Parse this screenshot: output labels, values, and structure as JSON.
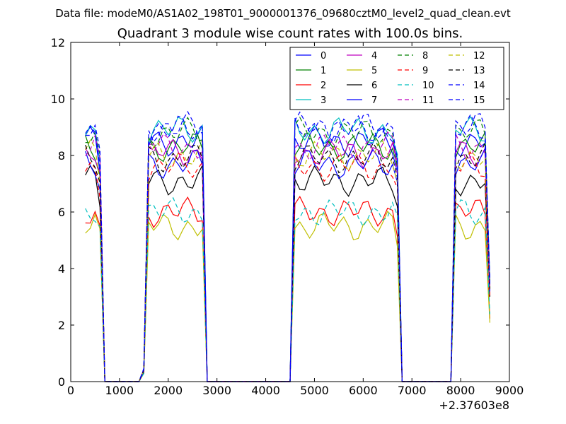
{
  "figure": {
    "suptitle": "Data file: modeM0/AS1A02_198T01_9000001376_09680cztM0_level2_quad_clean.evt"
  },
  "chart_data": {
    "type": "line",
    "title": "Quadrant 3 module wise count rates with 100.0s bins.",
    "xlabel": "",
    "ylabel": "",
    "x_offset_label": "+2.37603e8",
    "xlim": [
      0,
      9000
    ],
    "ylim": [
      0,
      12
    ],
    "xticks": [
      0,
      1000,
      2000,
      3000,
      4000,
      5000,
      6000,
      7000,
      8000,
      9000
    ],
    "yticks": [
      0,
      2,
      4,
      6,
      8,
      10,
      12
    ],
    "grid": false,
    "legend_position": "top-right",
    "legend_columns": 4,
    "series": [
      {
        "name": "0",
        "color": "#0000ff",
        "dash": "solid",
        "level": 8.5
      },
      {
        "name": "1",
        "color": "#008000",
        "dash": "solid",
        "level": 8.3
      },
      {
        "name": "2",
        "color": "#ff0000",
        "dash": "solid",
        "level": 6.0
      },
      {
        "name": "3",
        "color": "#00bfbf",
        "dash": "solid",
        "level": 8.9
      },
      {
        "name": "4",
        "color": "#bf00bf",
        "dash": "solid",
        "level": 8.1
      },
      {
        "name": "5",
        "color": "#bfbf00",
        "dash": "solid",
        "level": 5.5
      },
      {
        "name": "6",
        "color": "#000000",
        "dash": "solid",
        "level": 7.1
      },
      {
        "name": "7",
        "color": "#0000ff",
        "dash": "solid",
        "level": 7.7
      },
      {
        "name": "8",
        "color": "#008000",
        "dash": "dashed",
        "level": 8.8
      },
      {
        "name": "9",
        "color": "#ff0000",
        "dash": "dashed",
        "level": 7.6
      },
      {
        "name": "10",
        "color": "#00bfbf",
        "dash": "dashed",
        "level": 6.0
      },
      {
        "name": "11",
        "color": "#bf00bf",
        "dash": "dashed",
        "level": 8.3
      },
      {
        "name": "12",
        "color": "#bfbf00",
        "dash": "dashed",
        "level": 8.0
      },
      {
        "name": "13",
        "color": "#000000",
        "dash": "dashed",
        "level": 7.9
      },
      {
        "name": "14",
        "color": "#0000ff",
        "dash": "dashed",
        "level": 9.0
      },
      {
        "name": "15",
        "color": "#0000ff",
        "dash": "dashed",
        "level": 8.9
      }
    ],
    "x": [
      300,
      400,
      500,
      600,
      700,
      800,
      900,
      1000,
      1100,
      1200,
      1300,
      1400,
      1500,
      1600,
      1700,
      1800,
      1900,
      2000,
      2100,
      2200,
      2300,
      2400,
      2500,
      2600,
      2700,
      2800,
      2900,
      3000,
      3100,
      3200,
      3300,
      3400,
      3500,
      3600,
      3700,
      3800,
      3900,
      4000,
      4100,
      4200,
      4300,
      4400,
      4500,
      4600,
      4700,
      4800,
      4900,
      5000,
      5100,
      5200,
      5300,
      5400,
      5500,
      5600,
      5700,
      5800,
      5900,
      6000,
      6100,
      6200,
      6300,
      6400,
      6500,
      6600,
      6700,
      6800,
      6900,
      7000,
      7100,
      7200,
      7300,
      7400,
      7500,
      7600,
      7700,
      7800,
      7900,
      8000,
      8100,
      8200,
      8300,
      8400,
      8500,
      8600
    ],
    "profile": [
      1.0,
      1.0,
      1.0,
      0.9,
      0.0,
      0.0,
      0.0,
      0.0,
      0.0,
      0.0,
      0.0,
      0.0,
      0.05,
      1.0,
      1.0,
      1.0,
      1.0,
      1.0,
      1.0,
      1.0,
      1.0,
      1.0,
      1.0,
      1.0,
      1.0,
      0.0,
      0.0,
      0.0,
      0.0,
      0.0,
      0.0,
      0.0,
      0.0,
      0.0,
      0.0,
      0.0,
      0.0,
      0.0,
      0.0,
      0.0,
      0.0,
      0.0,
      0.0,
      1.0,
      1.0,
      1.0,
      1.0,
      1.0,
      1.0,
      1.0,
      1.0,
      1.0,
      1.0,
      1.0,
      1.0,
      1.0,
      1.0,
      1.0,
      1.0,
      1.0,
      1.0,
      1.0,
      1.0,
      1.0,
      0.9,
      0.0,
      0.0,
      0.0,
      0.0,
      0.0,
      0.0,
      0.0,
      0.0,
      0.0,
      0.0,
      0.0,
      1.0,
      1.0,
      1.0,
      1.0,
      1.0,
      1.0,
      1.0,
      0.4
    ]
  }
}
